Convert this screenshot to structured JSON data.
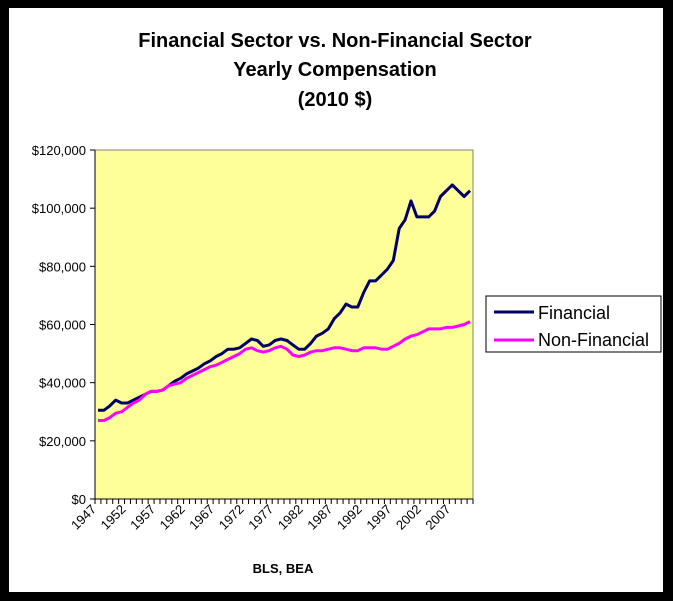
{
  "chart_data": {
    "type": "line",
    "title": [
      "Financial Sector vs. Non-Financial Sector",
      "Yearly Compensation",
      "(2010 $)"
    ],
    "xlabel": "BLS, BEA",
    "ylabel": "",
    "x": [
      1947,
      1948,
      1949,
      1950,
      1951,
      1952,
      1953,
      1954,
      1955,
      1956,
      1957,
      1958,
      1959,
      1960,
      1961,
      1962,
      1963,
      1964,
      1965,
      1966,
      1967,
      1968,
      1969,
      1970,
      1971,
      1972,
      1973,
      1974,
      1975,
      1976,
      1977,
      1978,
      1979,
      1980,
      1981,
      1982,
      1983,
      1984,
      1985,
      1986,
      1987,
      1988,
      1989,
      1990,
      1991,
      1992,
      1993,
      1994,
      1995,
      1996,
      1997,
      1998,
      1999,
      2000,
      2001,
      2002,
      2003,
      2004,
      2005,
      2006,
      2007,
      2008,
      2009,
      2010
    ],
    "x_tick_labels": [
      "1947",
      "1952",
      "1957",
      "1962",
      "1967",
      "1972",
      "1977",
      "1982",
      "1987",
      "1992",
      "1997",
      "2002",
      "2007"
    ],
    "y_tick_labels": [
      "$0",
      "$20,000",
      "$40,000",
      "$60,000",
      "$80,000",
      "$100,000",
      "$120,000"
    ],
    "ylim": [
      0,
      120000
    ],
    "grid": false,
    "legend_placement": "right",
    "plot_background": "#FFFF99",
    "series": [
      {
        "name": "Financial",
        "color": "#000066",
        "values": [
          30500,
          30500,
          32000,
          34000,
          33000,
          33000,
          34000,
          35000,
          36000,
          37000,
          37000,
          37500,
          39000,
          40500,
          41500,
          43000,
          44000,
          45000,
          46500,
          47500,
          49000,
          50000,
          51500,
          51500,
          52000,
          53500,
          55000,
          54500,
          52500,
          53000,
          54500,
          55000,
          54500,
          53000,
          51500,
          51500,
          53500,
          56000,
          57000,
          58500,
          62000,
          64000,
          67000,
          66000,
          66000,
          71000,
          75000,
          75000,
          77000,
          79000,
          82000,
          93000,
          96000,
          102500,
          97000,
          97000,
          97000,
          99000,
          104000,
          106000,
          108000,
          106000,
          104000,
          106000
        ]
      },
      {
        "name": "Non-Financial",
        "color": "#FF00FF",
        "values": [
          27000,
          27000,
          28000,
          29500,
          30000,
          31500,
          33000,
          34000,
          36000,
          37000,
          37000,
          37500,
          39000,
          39500,
          40000,
          41500,
          42500,
          43500,
          44500,
          45500,
          46000,
          47000,
          48000,
          49000,
          50000,
          51500,
          52000,
          51000,
          50500,
          51000,
          52000,
          52500,
          51500,
          49500,
          49000,
          49500,
          50500,
          51000,
          51000,
          51500,
          52000,
          52000,
          51500,
          51000,
          51000,
          52000,
          52000,
          52000,
          51500,
          51500,
          52500,
          53500,
          55000,
          56000,
          56500,
          57500,
          58500,
          58500,
          58500,
          59000,
          59000,
          59500,
          60000,
          61000
        ]
      }
    ]
  }
}
